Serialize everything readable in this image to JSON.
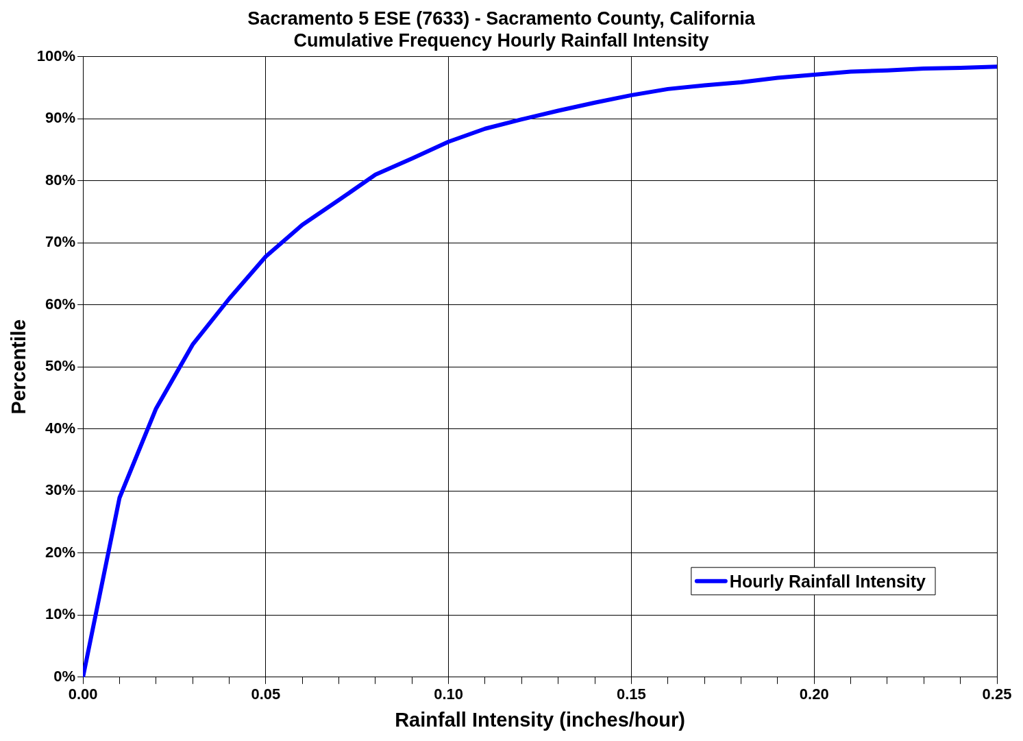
{
  "chart_data": {
    "type": "line",
    "title": "Sacramento 5 ESE (7633) - Sacramento County, California\nCumulative Frequency Hourly Rainfall Intensity",
    "xlabel": "Rainfall Intensity (inches/hour)",
    "ylabel": "Percentile",
    "x": [
      0,
      0.01,
      0.02,
      0.03,
      0.04,
      0.05,
      0.06,
      0.07,
      0.08,
      0.09,
      0.1,
      0.11,
      0.12,
      0.13,
      0.14,
      0.15,
      0.16,
      0.17,
      0.18,
      0.19,
      0.2,
      0.21,
      0.22,
      0.23,
      0.24,
      0.25
    ],
    "series": [
      {
        "name": "Hourly Rainfall Intensity",
        "color": "#0000ff",
        "values": [
          0,
          28.9,
          43.3,
          53.6,
          61.0,
          67.8,
          72.9,
          76.9,
          81.0,
          83.6,
          86.3,
          88.4,
          89.9,
          91.3,
          92.6,
          93.8,
          94.8,
          95.4,
          95.9,
          96.6,
          97.1,
          97.6,
          97.8,
          98.1,
          98.2,
          98.4
        ]
      }
    ],
    "xlim": [
      0,
      0.25
    ],
    "xticks": [
      {
        "value": 0,
        "label": "0.00"
      },
      {
        "value": 0.01,
        "label": null
      },
      {
        "value": 0.02,
        "label": null
      },
      {
        "value": 0.03,
        "label": null
      },
      {
        "value": 0.04,
        "label": null
      },
      {
        "value": 0.05,
        "label": "0.05"
      },
      {
        "value": 0.06,
        "label": null
      },
      {
        "value": 0.07,
        "label": null
      },
      {
        "value": 0.08,
        "label": null
      },
      {
        "value": 0.09,
        "label": null
      },
      {
        "value": 0.1,
        "label": "0.10"
      },
      {
        "value": 0.11,
        "label": null
      },
      {
        "value": 0.12,
        "label": null
      },
      {
        "value": 0.13,
        "label": null
      },
      {
        "value": 0.14,
        "label": null
      },
      {
        "value": 0.15,
        "label": "0.15"
      },
      {
        "value": 0.16,
        "label": null
      },
      {
        "value": 0.17,
        "label": null
      },
      {
        "value": 0.18,
        "label": null
      },
      {
        "value": 0.19,
        "label": null
      },
      {
        "value": 0.2,
        "label": "0.20"
      },
      {
        "value": 0.21,
        "label": null
      },
      {
        "value": 0.22,
        "label": null
      },
      {
        "value": 0.23,
        "label": null
      },
      {
        "value": 0.24,
        "label": null
      },
      {
        "value": 0.25,
        "label": "0.25"
      }
    ],
    "ylim": [
      0,
      100
    ],
    "yticks": [
      {
        "value": 0,
        "label": "0%"
      },
      {
        "value": 10,
        "label": "10%"
      },
      {
        "value": 20,
        "label": "20%"
      },
      {
        "value": 30,
        "label": "30%"
      },
      {
        "value": 40,
        "label": "40%"
      },
      {
        "value": 50,
        "label": "50%"
      },
      {
        "value": 60,
        "label": "60%"
      },
      {
        "value": 70,
        "label": "70%"
      },
      {
        "value": 80,
        "label": "80%"
      },
      {
        "value": 90,
        "label": "90%"
      },
      {
        "value": 100,
        "label": "100%"
      }
    ],
    "grid": true,
    "legend": "bottom right",
    "marker": "none",
    "line_style": "solid"
  }
}
